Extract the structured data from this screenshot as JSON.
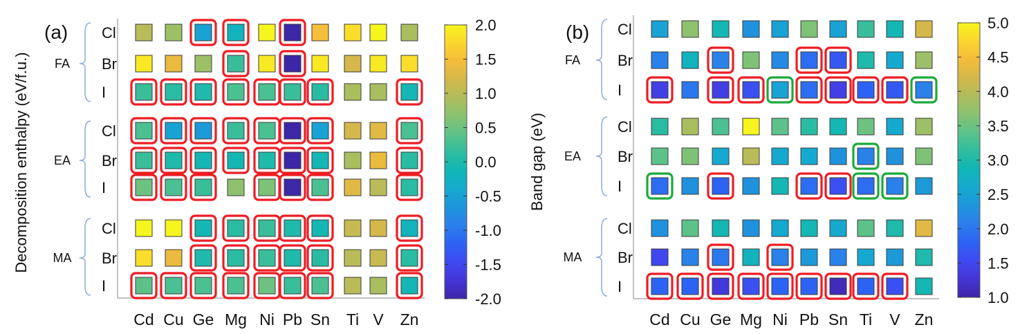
{
  "colorscale": [
    "#3e26a8",
    "#4435d6",
    "#3f49f2",
    "#2d63f4",
    "#2c7eec",
    "#1e95db",
    "#16a9d0",
    "#10b6b6",
    "#2ebd9f",
    "#5cc28a",
    "#89c271",
    "#b0bd5c",
    "#d4b84b",
    "#f3bc3b",
    "#fcd52f",
    "#f6f51d"
  ],
  "highlight_colors": {
    "red": "#ee1c23",
    "green": "#1aab3a"
  },
  "row_axis": {
    "groups": [
      "FA",
      "EA",
      "MA"
    ],
    "halides": [
      "Cl",
      "Br",
      "I"
    ]
  },
  "columns": [
    "Cd",
    "Cu",
    "Ge",
    "Mg",
    "Ni",
    "Pb",
    "Sn",
    "Ti",
    "V",
    "Zn"
  ],
  "chart_data": [
    {
      "type": "heatmap",
      "panel_label": "(a)",
      "colorbar_label": "Decomposition  enthalpy (eV/f.u.)",
      "colorbar_ticks": [
        "2.0",
        "1.5",
        "1.0",
        "0.5",
        "0.0",
        "-0.5",
        "-1.0",
        "-1.5",
        "-2.0"
      ],
      "vmin": -2.0,
      "vmax": 2.0,
      "rows": [
        "FA Cl",
        "FA Br",
        "FA I",
        "EA Cl",
        "EA Br",
        "EA I",
        "MA Cl",
        "MA Br",
        "MA I"
      ],
      "values": [
        [
          1.0,
          0.8,
          -0.5,
          -0.2,
          2.0,
          -2.0,
          1.5,
          1.8,
          2.0,
          0.9
        ],
        [
          1.9,
          1.4,
          0.8,
          0.2,
          1.9,
          -2.0,
          1.9,
          1.2,
          1.9,
          1.8
        ],
        [
          0.2,
          0.1,
          0.0,
          0.3,
          0.3,
          0.2,
          0.1,
          0.9,
          0.9,
          -0.1
        ],
        [
          0.3,
          -0.5,
          -0.6,
          0.2,
          0.3,
          -2.0,
          -0.5,
          1.2,
          1.3,
          0.3
        ],
        [
          0.2,
          0.0,
          -0.1,
          -0.1,
          0.0,
          -2.0,
          -0.1,
          0.9,
          1.4,
          0.1
        ],
        [
          0.5,
          0.3,
          0.2,
          0.7,
          0.6,
          -2.0,
          0.3,
          1.3,
          1.0,
          0.1
        ],
        [
          2.0,
          2.0,
          -0.1,
          0.1,
          0.2,
          0.0,
          -0.1,
          1.1,
          1.2,
          -0.2
        ],
        [
          1.8,
          1.4,
          0.0,
          0.1,
          0.2,
          0.0,
          0.1,
          1.0,
          1.1,
          0.1
        ],
        [
          0.4,
          0.3,
          0.3,
          0.3,
          0.5,
          0.2,
          0.3,
          1.0,
          0.9,
          -0.1
        ]
      ],
      "highlights": [
        [
          null,
          null,
          "red",
          "red",
          null,
          "red",
          null,
          null,
          null,
          null
        ],
        [
          null,
          null,
          null,
          "red",
          null,
          "red",
          null,
          null,
          null,
          null
        ],
        [
          "red",
          "red",
          "red",
          "red",
          "red",
          "red",
          "red",
          null,
          null,
          "red"
        ],
        [
          "red",
          "red",
          "red",
          "red",
          "red",
          "red",
          "red",
          null,
          null,
          "red"
        ],
        [
          "red",
          "red",
          "red",
          "red",
          "red",
          "red",
          "red",
          null,
          null,
          "red"
        ],
        [
          "red",
          "red",
          "red",
          null,
          "red",
          "red",
          "red",
          null,
          null,
          "red"
        ],
        [
          null,
          null,
          "red",
          "red",
          "red",
          "red",
          "red",
          null,
          null,
          "red"
        ],
        [
          null,
          null,
          "red",
          "red",
          "red",
          "red",
          "red",
          null,
          null,
          "red"
        ],
        [
          "red",
          "red",
          "red",
          "red",
          "red",
          "red",
          "red",
          null,
          null,
          "red"
        ]
      ]
    },
    {
      "type": "heatmap",
      "panel_label": "(b)",
      "colorbar_label": "Band gap (eV)",
      "colorbar_ticks": [
        "5.0",
        "4.5",
        "4.0",
        "3.5",
        "3.0",
        "2.5",
        "2.0",
        "1.5",
        "1.0"
      ],
      "vmin": 1.0,
      "vmax": 5.0,
      "rows": [
        "FA Cl",
        "FA Br",
        "FA I",
        "EA Cl",
        "EA Br",
        "EA I",
        "MA Cl",
        "MA Br",
        "MA I"
      ],
      "values": [
        [
          2.5,
          3.7,
          2.9,
          2.3,
          2.5,
          3.6,
          2.5,
          3.2,
          2.9,
          4.2
        ],
        [
          2.1,
          2.8,
          2.1,
          3.6,
          2.2,
          1.9,
          1.7,
          3.0,
          2.6,
          3.8
        ],
        [
          1.4,
          2.0,
          1.4,
          1.6,
          2.5,
          1.9,
          1.4,
          1.8,
          1.7,
          2.1
        ],
        [
          3.1,
          3.9,
          3.3,
          5.0,
          3.4,
          3.1,
          2.9,
          3.5,
          2.6,
          3.8
        ],
        [
          3.4,
          3.6,
          2.6,
          4.0,
          2.6,
          2.6,
          2.3,
          2.1,
          2.3,
          3.6
        ],
        [
          1.9,
          2.3,
          1.8,
          2.3,
          2.9,
          1.9,
          1.6,
          1.9,
          2.1,
          2.4
        ],
        [
          2.3,
          3.4,
          2.9,
          2.3,
          2.6,
          2.9,
          2.6,
          3.4,
          3.0,
          4.3
        ],
        [
          1.5,
          2.1,
          2.0,
          2.8,
          2.1,
          2.4,
          2.1,
          2.6,
          2.4,
          3.0
        ],
        [
          1.8,
          1.8,
          1.3,
          1.6,
          1.8,
          1.8,
          1.1,
          1.8,
          1.6,
          2.9
        ]
      ],
      "highlights": [
        [
          null,
          null,
          null,
          null,
          null,
          null,
          null,
          null,
          null,
          null
        ],
        [
          null,
          null,
          "red",
          null,
          null,
          "red",
          "red",
          null,
          null,
          null
        ],
        [
          "red",
          null,
          "red",
          "red",
          "green",
          "red",
          "red",
          "red",
          "red",
          "green"
        ],
        [
          null,
          null,
          null,
          null,
          null,
          null,
          null,
          null,
          null,
          null
        ],
        [
          null,
          null,
          null,
          null,
          null,
          null,
          null,
          "green",
          null,
          null
        ],
        [
          "green",
          null,
          "red",
          null,
          null,
          "red",
          "red",
          "green",
          "green",
          null
        ],
        [
          null,
          null,
          null,
          null,
          null,
          null,
          null,
          null,
          null,
          null
        ],
        [
          null,
          null,
          "red",
          null,
          "red",
          null,
          null,
          null,
          null,
          null
        ],
        [
          "red",
          "red",
          "red",
          "red",
          "red",
          "red",
          "red",
          "red",
          "red",
          null
        ]
      ]
    }
  ]
}
